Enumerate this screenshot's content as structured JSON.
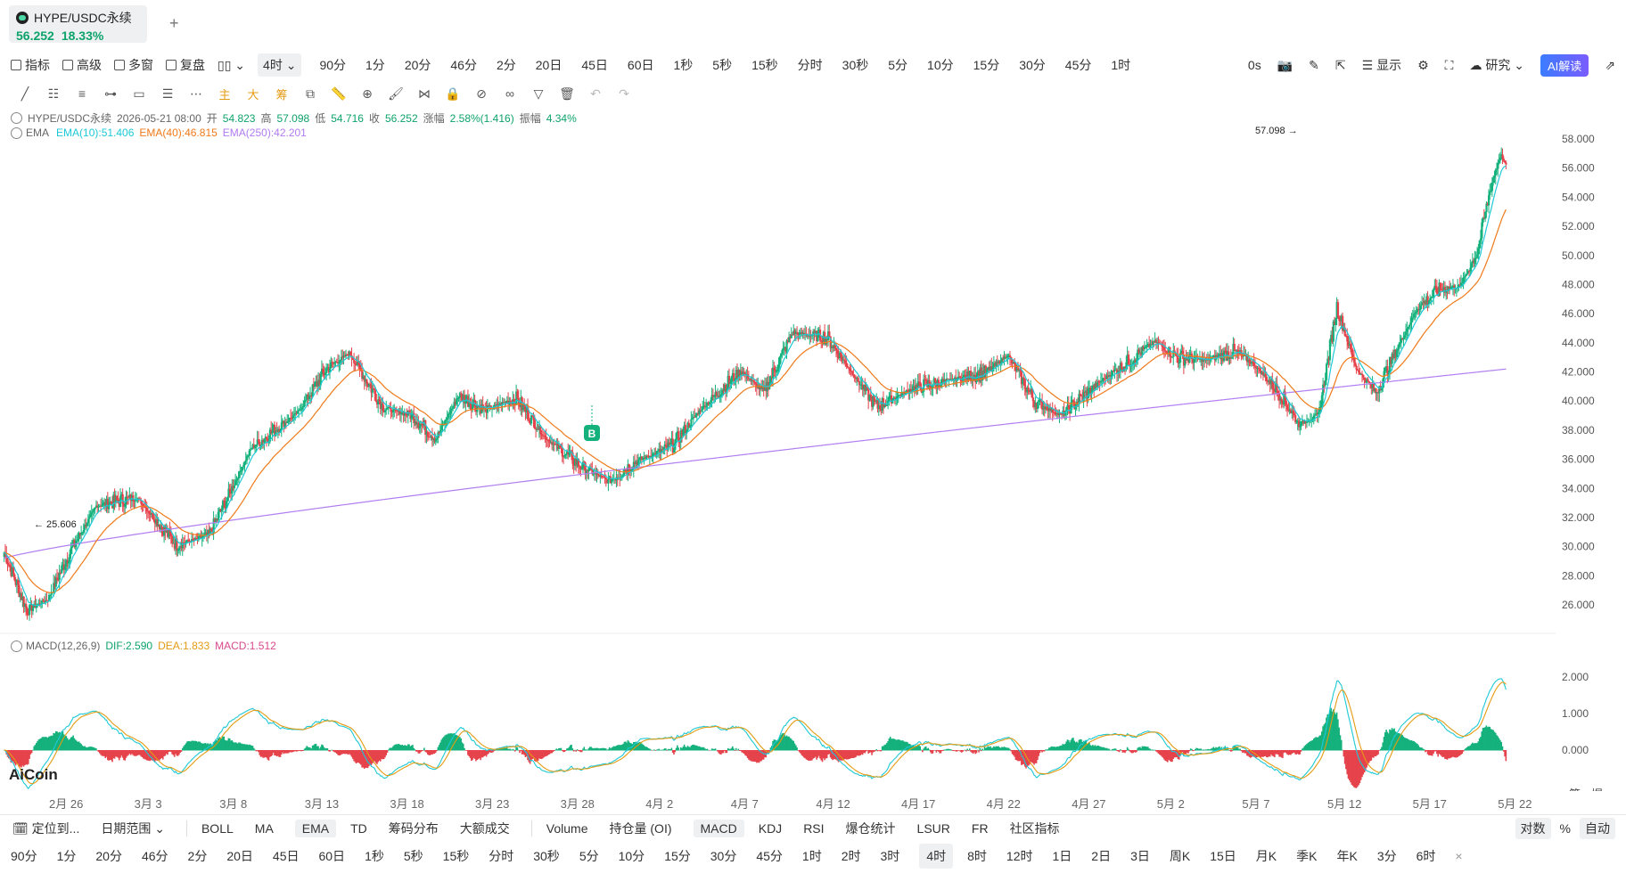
{
  "tab": {
    "symbol": "HYPE/USDC永续",
    "price": "56.252",
    "change": "18.33%"
  },
  "toolbar1": {
    "left": [
      "指标",
      "高级",
      "多窗",
      "复盘"
    ],
    "selected": "4时",
    "timeframes": [
      "90分",
      "1分",
      "20分",
      "46分",
      "2分",
      "20日",
      "45日",
      "60日",
      "1秒",
      "5秒",
      "15秒",
      "分时",
      "30秒",
      "5分",
      "10分",
      "15分",
      "30分",
      "45分",
      "1时"
    ],
    "right": {
      "countdown": "0s",
      "display": "显示",
      "research": "研究",
      "ai": "AI解读"
    }
  },
  "toolbar2": {
    "labels": [
      "主",
      "大",
      "筹"
    ]
  },
  "info": {
    "symbol": "HYPE/USDC永续",
    "datetime": "2026-05-21 08:00",
    "open_label": "开",
    "open": "54.823",
    "high_label": "高",
    "high": "57.098",
    "low_label": "低",
    "low": "54.716",
    "close_label": "收",
    "close": "56.252",
    "chg_label": "涨幅",
    "chg": "2.58%(1.416)",
    "amp_label": "振幅",
    "amp": "4.34%"
  },
  "ema": {
    "name": "EMA",
    "e10": "EMA(10):51.406",
    "e40": "EMA(40):46.815",
    "e250": "EMA(250):42.201",
    "colors": {
      "e10": "#1dc9d6",
      "e40": "#f07a1a",
      "e250": "#b07cf0"
    }
  },
  "macd": {
    "name": "MACD(12,26,9)",
    "dif": "DIF:2.590",
    "dea": "DEA:1.833",
    "macd": "MACD:1.512"
  },
  "chart_data": {
    "type": "candlestick",
    "y_ticks": [
      "58.000",
      "56.000",
      "54.000",
      "52.000",
      "50.000",
      "48.000",
      "46.000",
      "44.000",
      "42.000",
      "40.000",
      "38.000",
      "36.000",
      "34.000",
      "32.000",
      "30.000",
      "28.000",
      "26.000"
    ],
    "ylim": [
      24.5,
      58.8
    ],
    "high_marker": "57.098 →",
    "low_marker": "← 25.606",
    "macd_ticks": [
      "2.000",
      "1.000",
      "0.000"
    ],
    "x_labels": [
      "2月 26",
      "3月 3",
      "3月 8",
      "3月 13",
      "3月 18",
      "3月 23",
      "3月 28",
      "4月 2",
      "4月 7",
      "4月 12",
      "4月 17",
      "4月 22",
      "4月 27",
      "5月 2",
      "5月 7",
      "5月 12",
      "5月 17",
      "5月 22"
    ],
    "signal": "B",
    "corner": [
      "筹",
      "爆"
    ],
    "keypoints": [
      [
        0,
        29.6
      ],
      [
        20,
        25.6
      ],
      [
        38,
        26.4
      ],
      [
        55,
        29.3
      ],
      [
        80,
        32.8
      ],
      [
        115,
        33.4
      ],
      [
        150,
        30.1
      ],
      [
        178,
        30.8
      ],
      [
        215,
        36.8
      ],
      [
        255,
        39.2
      ],
      [
        280,
        42.2
      ],
      [
        300,
        43.3
      ],
      [
        330,
        39.5
      ],
      [
        355,
        39.0
      ],
      [
        375,
        37.4
      ],
      [
        395,
        40.4
      ],
      [
        418,
        39.4
      ],
      [
        445,
        40.2
      ],
      [
        470,
        37.5
      ],
      [
        500,
        35.6
      ],
      [
        525,
        34.5
      ],
      [
        548,
        35.8
      ],
      [
        580,
        36.9
      ],
      [
        605,
        39.4
      ],
      [
        640,
        42.1
      ],
      [
        660,
        40.6
      ],
      [
        685,
        44.7
      ],
      [
        715,
        44.4
      ],
      [
        738,
        41.8
      ],
      [
        758,
        39.6
      ],
      [
        790,
        40.9
      ],
      [
        820,
        41.4
      ],
      [
        855,
        42.0
      ],
      [
        872,
        43.2
      ],
      [
        895,
        40.0
      ],
      [
        918,
        39.0
      ],
      [
        955,
        41.5
      ],
      [
        985,
        43.2
      ],
      [
        1000,
        44.1
      ],
      [
        1020,
        43.0
      ],
      [
        1045,
        42.8
      ],
      [
        1068,
        43.4
      ],
      [
        1085,
        42.6
      ],
      [
        1110,
        40.4
      ],
      [
        1125,
        38.4
      ],
      [
        1142,
        39.0
      ],
      [
        1158,
        46.5
      ],
      [
        1175,
        42.2
      ],
      [
        1192,
        40.6
      ],
      [
        1208,
        43.2
      ],
      [
        1228,
        46.4
      ],
      [
        1248,
        47.7
      ],
      [
        1265,
        47.9
      ],
      [
        1280,
        50.2
      ],
      [
        1292,
        54.8
      ],
      [
        1300,
        56.9
      ],
      [
        1305,
        56.25
      ]
    ]
  },
  "bottom1": {
    "locate": "定位到...",
    "range": "日期范围",
    "main": [
      "BOLL",
      "MA",
      "EMA",
      "TD",
      "筹码分布",
      "大额成交"
    ],
    "main_sel": "EMA",
    "sub": [
      "Volume",
      "持仓量 (OI)",
      "MACD",
      "KDJ",
      "RSI",
      "爆仓统计",
      "LSUR",
      "FR",
      "社区指标"
    ],
    "sub_sel": "MACD",
    "right": [
      "对数",
      "%",
      "自动"
    ]
  },
  "bottom2": {
    "timeframes": [
      "90分",
      "1分",
      "20分",
      "46分",
      "2分",
      "20日",
      "45日",
      "60日",
      "1秒",
      "5秒",
      "15秒",
      "分时",
      "30秒",
      "5分",
      "10分",
      "15分",
      "30分",
      "45分",
      "1时",
      "2时",
      "3时",
      "4时",
      "8时",
      "12时",
      "1日",
      "2日",
      "3日",
      "周K",
      "15日",
      "月K",
      "季K",
      "年K",
      "3分",
      "6时"
    ],
    "selected": "4时"
  },
  "brand": "AiCoin"
}
